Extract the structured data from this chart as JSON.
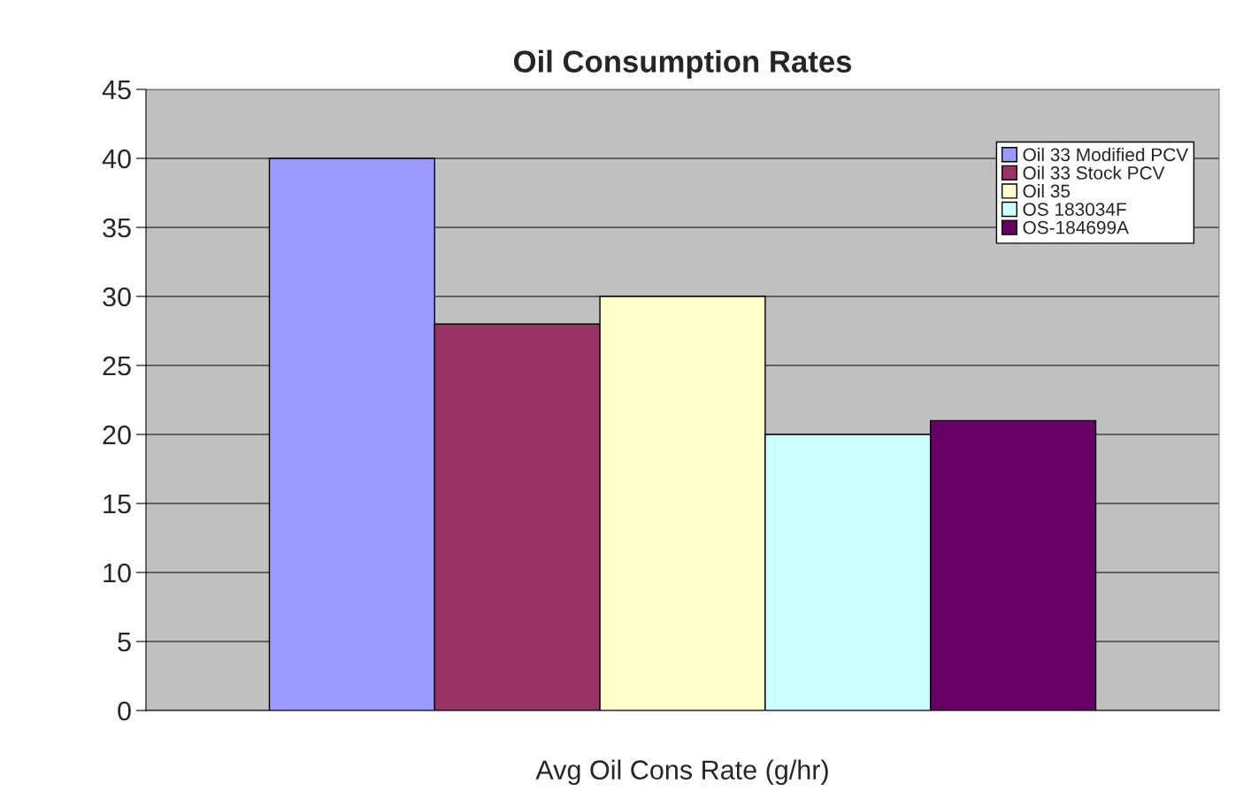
{
  "chart_data": {
    "type": "bar",
    "title": "Oil Consumption Rates",
    "categories": [
      "Avg Oil Cons Rate (g/hr)"
    ],
    "series": [
      {
        "name": "Oil 33 Modified PCV",
        "color": "#9999ff",
        "values": [
          40
        ]
      },
      {
        "name": "Oil 33 Stock PCV",
        "color": "#993366",
        "values": [
          28
        ]
      },
      {
        "name": "Oil 35",
        "color": "#ffffcc",
        "values": [
          30
        ]
      },
      {
        "name": "OS 183034F",
        "color": "#ccffff",
        "values": [
          20
        ]
      },
      {
        "name": "OS-184699A",
        "color": "#660066",
        "values": [
          21
        ]
      }
    ],
    "ylim": [
      0,
      45
    ],
    "yticks": [
      0,
      5,
      10,
      15,
      20,
      25,
      30,
      35,
      40,
      45
    ],
    "grid": "y",
    "legend": "top right"
  }
}
